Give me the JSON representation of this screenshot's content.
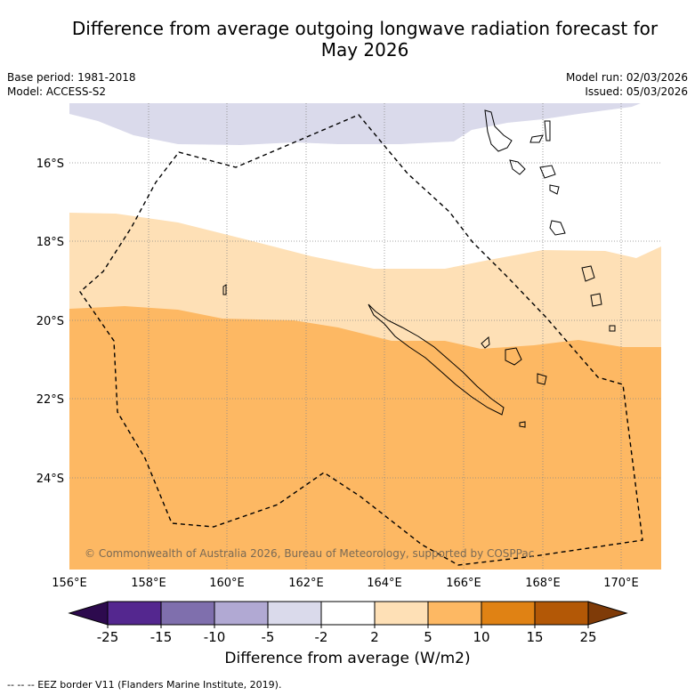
{
  "title": {
    "line1": "Difference from average outgoing longwave radiation forecast for",
    "line2": "May 2026"
  },
  "info": {
    "base_period": "Base period: 1981-2018",
    "model": "Model: ACCESS-S2",
    "model_run": "Model run: 02/03/2026",
    "issued": "Issued: 05/03/2026"
  },
  "map": {
    "lat_labels": [
      "16°S",
      "18°S",
      "20°S",
      "22°S",
      "24°S"
    ],
    "lon_labels": [
      "156°E",
      "158°E",
      "160°E",
      "162°E",
      "164°E",
      "166°E",
      "168°E",
      "170°E"
    ],
    "copyright": "© Commonwealth of Australia 2026, Bureau of Meteorology, supported by COSPPac"
  },
  "colorbar": {
    "ticks": [
      "-25",
      "-15",
      "-10",
      "-5",
      "-2",
      "2",
      "5",
      "10",
      "15",
      "25"
    ],
    "colors": [
      "#2d0a4e",
      "#54278f",
      "#7f6fad",
      "#b1a9d3",
      "#dadaeb",
      "#ffffff",
      "#fee0b6",
      "#fdb863",
      "#e08214",
      "#b35806",
      "#7f3b08"
    ],
    "label": "Difference from average (W/m2)"
  },
  "footnote": "--  --  -- EEZ border V11 (Flanders Marine Institute, 2019)."
}
